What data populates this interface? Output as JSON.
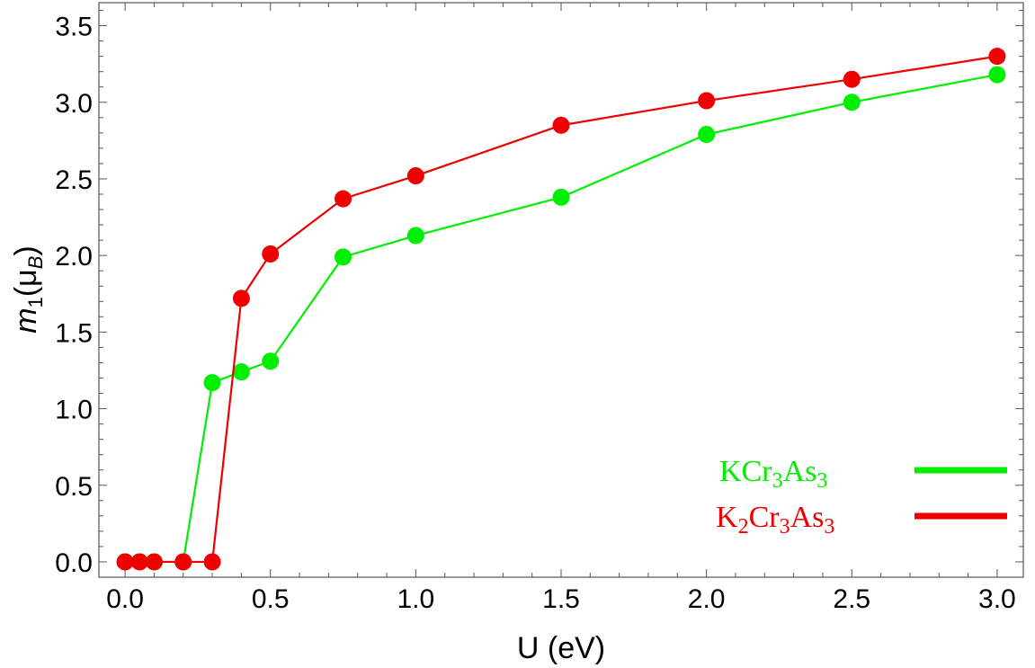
{
  "chart_data": {
    "type": "line",
    "title": "",
    "xlabel": "U (eV)",
    "ylabel": {
      "var": "m",
      "sub": "1",
      "paren_open": "(",
      "mu": "μ",
      "mu_sub": "B",
      "paren_close": ")"
    },
    "xlim": [
      -0.09,
      3.09
    ],
    "ylim": [
      -0.1,
      3.65
    ],
    "xticks": [
      0.0,
      0.5,
      1.0,
      1.5,
      2.0,
      2.5,
      3.0
    ],
    "xtick_labels": [
      "0.0",
      "0.5",
      "1.0",
      "1.5",
      "2.0",
      "2.5",
      "3.0"
    ],
    "yticks": [
      0.0,
      0.5,
      1.0,
      1.5,
      2.0,
      2.5,
      3.0,
      3.5
    ],
    "ytick_labels": [
      "0.0",
      "0.5",
      "1.0",
      "1.5",
      "2.0",
      "2.5",
      "3.0",
      "3.5"
    ],
    "series": [
      {
        "name": "KCr3As3",
        "legend": {
          "parts": [
            "KCr",
            "3",
            "As",
            "3"
          ]
        },
        "color": "#00ee00",
        "x": [
          0.0,
          0.05,
          0.1,
          0.2,
          0.3,
          0.4,
          0.5,
          0.75,
          1.0,
          1.5,
          2.0,
          2.5,
          3.0
        ],
        "y": [
          0.0,
          0.0,
          0.0,
          0.0,
          1.17,
          1.24,
          1.31,
          1.99,
          2.13,
          2.38,
          2.79,
          3.0,
          3.18
        ]
      },
      {
        "name": "K2Cr3As3",
        "legend": {
          "parts": [
            "K",
            "2",
            "Cr",
            "3",
            "As",
            "3"
          ]
        },
        "color": "#ee0000",
        "x": [
          0.0,
          0.05,
          0.1,
          0.2,
          0.3,
          0.4,
          0.5,
          0.75,
          1.0,
          1.5,
          2.0,
          2.5,
          3.0
        ],
        "y": [
          0.0,
          0.0,
          0.0,
          0.0,
          0.0,
          1.72,
          2.01,
          2.37,
          2.52,
          2.85,
          3.01,
          3.15,
          3.3
        ]
      }
    ],
    "legend_position": "bottom-right"
  }
}
